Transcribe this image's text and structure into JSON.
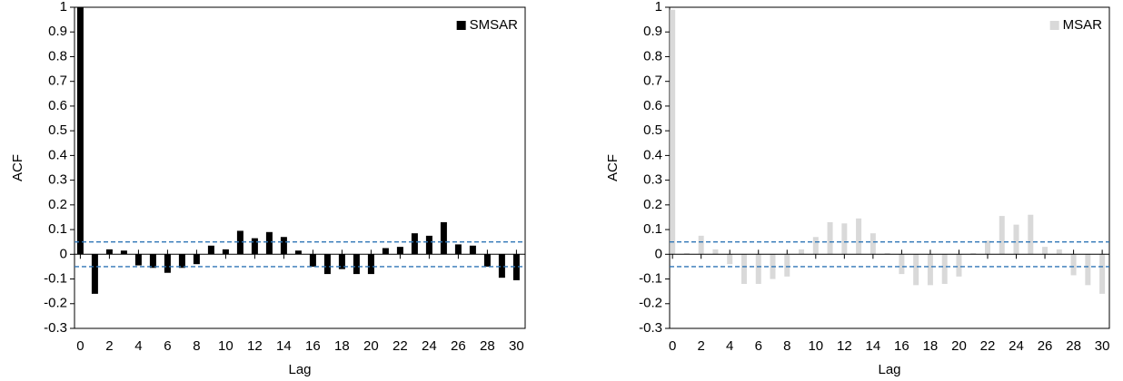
{
  "chart_data": [
    {
      "type": "bar",
      "x_label": "Lag",
      "y_label": "ACF",
      "x": [
        0,
        1,
        2,
        3,
        4,
        5,
        6,
        7,
        8,
        9,
        10,
        11,
        12,
        13,
        14,
        15,
        16,
        17,
        18,
        19,
        20,
        21,
        22,
        23,
        24,
        25,
        26,
        27,
        28,
        29,
        30
      ],
      "series": [
        {
          "name": "SMSAR",
          "color": "#000000",
          "values": [
            1,
            -0.16,
            0.02,
            0.015,
            -0.045,
            -0.055,
            -0.075,
            -0.055,
            -0.04,
            0.035,
            0.02,
            0.095,
            0.065,
            0.09,
            0.07,
            0.015,
            -0.05,
            -0.08,
            -0.06,
            -0.08,
            -0.08,
            0.025,
            0.03,
            0.085,
            0.075,
            0.13,
            0.04,
            0.035,
            -0.05,
            -0.095,
            -0.105
          ]
        }
      ],
      "confidence_bounds": [
        0.05,
        -0.05
      ],
      "bound_color": "#2e75b6",
      "xlim": [
        -0.4,
        30.6
      ],
      "xticks": [
        0,
        2,
        4,
        6,
        8,
        10,
        12,
        14,
        16,
        18,
        20,
        22,
        24,
        26,
        28,
        30
      ],
      "ylim": [
        -0.3,
        1
      ],
      "yticks": [
        1,
        0.9,
        0.8,
        0.7,
        0.6,
        0.5,
        0.4,
        0.3,
        0.2,
        0.1,
        0,
        -0.1,
        -0.2,
        -0.3
      ],
      "legend": "upper right"
    },
    {
      "type": "bar",
      "x_label": "Lag",
      "y_label": "ACF",
      "x": [
        0,
        1,
        2,
        3,
        4,
        5,
        6,
        7,
        8,
        9,
        10,
        11,
        12,
        13,
        14,
        15,
        16,
        17,
        18,
        19,
        20,
        21,
        22,
        23,
        24,
        25,
        26,
        27,
        28,
        29,
        30
      ],
      "series": [
        {
          "name": "MSAR",
          "color": "#d9d9d9",
          "values": [
            0.99,
            0.005,
            0.075,
            0.02,
            -0.04,
            -0.12,
            -0.12,
            -0.1,
            -0.09,
            0.02,
            0.07,
            0.13,
            0.125,
            0.145,
            0.085,
            0.005,
            -0.08,
            -0.125,
            -0.125,
            -0.12,
            -0.09,
            0.005,
            0.055,
            0.155,
            0.12,
            0.16,
            0.03,
            0.02,
            -0.085,
            -0.125,
            -0.16
          ]
        }
      ],
      "confidence_bounds": [
        0.05,
        -0.05
      ],
      "bound_color": "#2e75b6",
      "xlim": [
        -0.2,
        30.5
      ],
      "xticks": [
        0,
        2,
        4,
        6,
        8,
        10,
        12,
        14,
        16,
        18,
        20,
        22,
        24,
        26,
        28,
        30
      ],
      "ylim": [
        -0.3,
        1
      ],
      "yticks": [
        1,
        0.9,
        0.8,
        0.7,
        0.6,
        0.5,
        0.4,
        0.3,
        0.2,
        0.1,
        0,
        -0.1,
        -0.2,
        -0.3
      ],
      "legend": "upper right"
    }
  ]
}
